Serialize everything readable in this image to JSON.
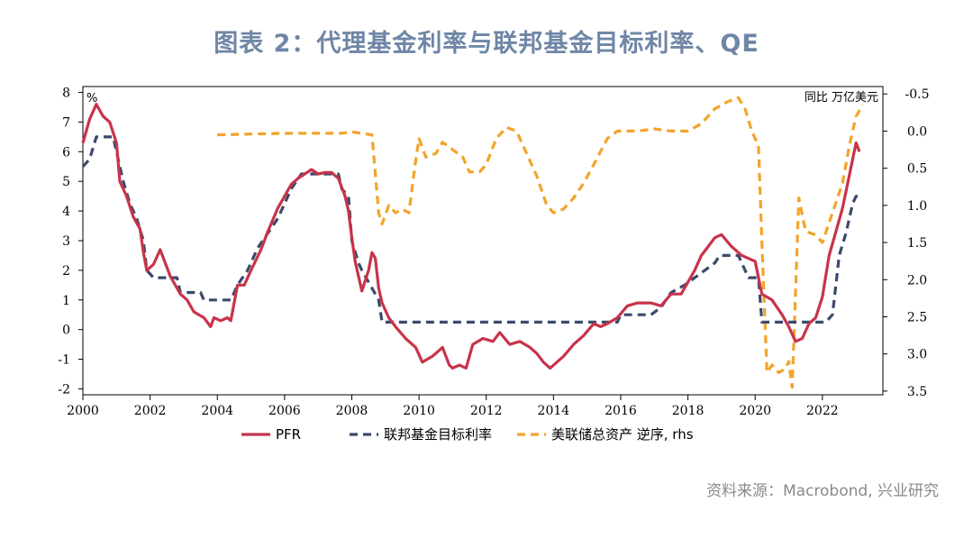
{
  "title": "图表 2：代理基金利率与联邦基金目标利率、QE",
  "source": "资料来源：Macrobond, 兴业研究",
  "chart_data": {
    "type": "line",
    "left_unit": "%",
    "right_unit": "同比 万亿美元",
    "x_ticks": [
      "2000",
      "2002",
      "2004",
      "2006",
      "2008",
      "2010",
      "2012",
      "2014",
      "2016",
      "2018",
      "2020",
      "2022"
    ],
    "y_left_ticks": [
      "8",
      "7",
      "6",
      "5",
      "4",
      "3",
      "2",
      "1",
      "0",
      "-1",
      "-2"
    ],
    "y_right_ticks": [
      "-0.5",
      "0.0",
      "0.5",
      "1.0",
      "1.5",
      "2.0",
      "2.5",
      "3.0",
      "3.5"
    ],
    "xlim": [
      2000,
      2023.8
    ],
    "ylim_left": [
      -2.2,
      8.2
    ],
    "ylim_right": [
      -0.6,
      3.55
    ],
    "right_axis_inverted": true,
    "legend": [
      "PFR",
      "联邦基金目标利率",
      "美联储总资产 逆序, rhs"
    ],
    "colors": {
      "pfr": "#c8334a",
      "target": "#3b4a6b",
      "qe": "#f2a42b"
    },
    "series": [
      {
        "name": "PFR",
        "axis": "left",
        "points": [
          [
            2000.0,
            6.3
          ],
          [
            2000.2,
            7.1
          ],
          [
            2000.4,
            7.6
          ],
          [
            2000.6,
            7.2
          ],
          [
            2000.8,
            7.0
          ],
          [
            2001.0,
            6.3
          ],
          [
            2001.1,
            5.0
          ],
          [
            2001.3,
            4.5
          ],
          [
            2001.5,
            3.8
          ],
          [
            2001.7,
            3.4
          ],
          [
            2001.8,
            2.6
          ],
          [
            2001.9,
            2.0
          ],
          [
            2002.1,
            2.2
          ],
          [
            2002.3,
            2.7
          ],
          [
            2002.6,
            1.8
          ],
          [
            2002.9,
            1.2
          ],
          [
            2003.1,
            1.0
          ],
          [
            2003.3,
            0.6
          ],
          [
            2003.6,
            0.4
          ],
          [
            2003.8,
            0.1
          ],
          [
            2003.9,
            0.4
          ],
          [
            2004.1,
            0.3
          ],
          [
            2004.3,
            0.4
          ],
          [
            2004.4,
            0.3
          ],
          [
            2004.6,
            1.5
          ],
          [
            2004.8,
            1.5
          ],
          [
            2005.0,
            2.0
          ],
          [
            2005.3,
            2.7
          ],
          [
            2005.5,
            3.3
          ],
          [
            2005.8,
            4.1
          ],
          [
            2006.0,
            4.5
          ],
          [
            2006.2,
            4.9
          ],
          [
            2006.4,
            5.1
          ],
          [
            2006.6,
            5.25
          ],
          [
            2006.8,
            5.4
          ],
          [
            2007.0,
            5.25
          ],
          [
            2007.2,
            5.3
          ],
          [
            2007.4,
            5.3
          ],
          [
            2007.6,
            5.1
          ],
          [
            2007.8,
            4.5
          ],
          [
            2007.9,
            4.0
          ],
          [
            2008.0,
            3.1
          ],
          [
            2008.1,
            2.3
          ],
          [
            2008.3,
            1.3
          ],
          [
            2008.5,
            2.0
          ],
          [
            2008.6,
            2.6
          ],
          [
            2008.7,
            2.4
          ],
          [
            2008.8,
            1.4
          ],
          [
            2008.9,
            0.9
          ],
          [
            2009.1,
            0.4
          ],
          [
            2009.3,
            0.1
          ],
          [
            2009.6,
            -0.3
          ],
          [
            2009.9,
            -0.6
          ],
          [
            2010.1,
            -1.1
          ],
          [
            2010.4,
            -0.9
          ],
          [
            2010.7,
            -0.6
          ],
          [
            2010.9,
            -1.2
          ],
          [
            2011.0,
            -1.3
          ],
          [
            2011.2,
            -1.2
          ],
          [
            2011.4,
            -1.3
          ],
          [
            2011.6,
            -0.5
          ],
          [
            2011.9,
            -0.3
          ],
          [
            2012.2,
            -0.4
          ],
          [
            2012.4,
            -0.1
          ],
          [
            2012.7,
            -0.5
          ],
          [
            2013.0,
            -0.4
          ],
          [
            2013.3,
            -0.6
          ],
          [
            2013.5,
            -0.8
          ],
          [
            2013.7,
            -1.1
          ],
          [
            2013.9,
            -1.3
          ],
          [
            2014.1,
            -1.1
          ],
          [
            2014.3,
            -0.9
          ],
          [
            2014.6,
            -0.5
          ],
          [
            2014.9,
            -0.2
          ],
          [
            2015.2,
            0.2
          ],
          [
            2015.4,
            0.1
          ],
          [
            2015.6,
            0.2
          ],
          [
            2015.9,
            0.4
          ],
          [
            2016.2,
            0.8
          ],
          [
            2016.5,
            0.9
          ],
          [
            2016.9,
            0.9
          ],
          [
            2017.2,
            0.8
          ],
          [
            2017.5,
            1.2
          ],
          [
            2017.8,
            1.2
          ],
          [
            2018.0,
            1.6
          ],
          [
            2018.2,
            2.0
          ],
          [
            2018.4,
            2.5
          ],
          [
            2018.6,
            2.8
          ],
          [
            2018.8,
            3.1
          ],
          [
            2019.0,
            3.2
          ],
          [
            2019.3,
            2.8
          ],
          [
            2019.6,
            2.5
          ],
          [
            2019.8,
            2.4
          ],
          [
            2020.0,
            2.3
          ],
          [
            2020.2,
            1.2
          ],
          [
            2020.5,
            1.0
          ],
          [
            2020.8,
            0.5
          ],
          [
            2021.0,
            0.1
          ],
          [
            2021.2,
            -0.4
          ],
          [
            2021.4,
            -0.3
          ],
          [
            2021.6,
            0.2
          ],
          [
            2021.8,
            0.4
          ],
          [
            2022.0,
            1.1
          ],
          [
            2022.2,
            2.5
          ],
          [
            2022.4,
            3.3
          ],
          [
            2022.6,
            4.1
          ],
          [
            2022.8,
            5.2
          ],
          [
            2023.0,
            6.3
          ],
          [
            2023.1,
            6.0
          ]
        ]
      },
      {
        "name": "联邦基金目标利率",
        "axis": "left",
        "points": [
          [
            2000.0,
            5.5
          ],
          [
            2000.2,
            5.75
          ],
          [
            2000.4,
            6.5
          ],
          [
            2000.7,
            6.5
          ],
          [
            2000.9,
            6.5
          ],
          [
            2001.0,
            6.0
          ],
          [
            2001.2,
            5.0
          ],
          [
            2001.4,
            4.25
          ],
          [
            2001.6,
            3.75
          ],
          [
            2001.8,
            3.0
          ],
          [
            2001.9,
            2.0
          ],
          [
            2002.1,
            1.75
          ],
          [
            2002.8,
            1.75
          ],
          [
            2002.9,
            1.25
          ],
          [
            2003.5,
            1.25
          ],
          [
            2003.6,
            1.0
          ],
          [
            2004.4,
            1.0
          ],
          [
            2004.6,
            1.5
          ],
          [
            2004.9,
            2.0
          ],
          [
            2005.2,
            2.75
          ],
          [
            2005.5,
            3.25
          ],
          [
            2005.8,
            3.75
          ],
          [
            2006.0,
            4.25
          ],
          [
            2006.2,
            4.75
          ],
          [
            2006.5,
            5.25
          ],
          [
            2007.6,
            5.25
          ],
          [
            2007.7,
            4.75
          ],
          [
            2007.9,
            4.5
          ],
          [
            2008.0,
            3.0
          ],
          [
            2008.2,
            2.25
          ],
          [
            2008.3,
            2.0
          ],
          [
            2008.8,
            1.0
          ],
          [
            2008.9,
            0.25
          ],
          [
            2015.9,
            0.25
          ],
          [
            2016.0,
            0.5
          ],
          [
            2016.9,
            0.5
          ],
          [
            2017.2,
            0.75
          ],
          [
            2017.5,
            1.25
          ],
          [
            2017.9,
            1.5
          ],
          [
            2018.2,
            1.75
          ],
          [
            2018.5,
            2.0
          ],
          [
            2018.8,
            2.25
          ],
          [
            2018.95,
            2.5
          ],
          [
            2019.5,
            2.5
          ],
          [
            2019.6,
            2.25
          ],
          [
            2019.8,
            1.75
          ],
          [
            2020.1,
            1.75
          ],
          [
            2020.2,
            0.25
          ],
          [
            2022.1,
            0.25
          ],
          [
            2022.3,
            0.5
          ],
          [
            2022.4,
            1.5
          ],
          [
            2022.5,
            2.5
          ],
          [
            2022.7,
            3.25
          ],
          [
            2022.8,
            3.75
          ],
          [
            2022.9,
            4.25
          ],
          [
            2023.0,
            4.5
          ],
          [
            2023.1,
            4.5
          ]
        ]
      },
      {
        "name": "美联储总资产 逆序, rhs",
        "axis": "right",
        "points": [
          [
            2004.0,
            0.05
          ],
          [
            2005.0,
            0.04
          ],
          [
            2006.0,
            0.03
          ],
          [
            2007.0,
            0.03
          ],
          [
            2007.7,
            0.03
          ],
          [
            2008.0,
            0.01
          ],
          [
            2008.3,
            0.03
          ],
          [
            2008.6,
            0.05
          ],
          [
            2008.8,
            1.1
          ],
          [
            2008.9,
            1.25
          ],
          [
            2009.1,
            1.0
          ],
          [
            2009.3,
            1.1
          ],
          [
            2009.5,
            1.05
          ],
          [
            2009.7,
            1.1
          ],
          [
            2009.9,
            0.4
          ],
          [
            2010.0,
            0.1
          ],
          [
            2010.2,
            0.35
          ],
          [
            2010.5,
            0.3
          ],
          [
            2010.7,
            0.15
          ],
          [
            2011.0,
            0.25
          ],
          [
            2011.3,
            0.35
          ],
          [
            2011.5,
            0.55
          ],
          [
            2011.8,
            0.55
          ],
          [
            2012.0,
            0.45
          ],
          [
            2012.3,
            0.1
          ],
          [
            2012.6,
            -0.05
          ],
          [
            2012.9,
            0.0
          ],
          [
            2013.2,
            0.3
          ],
          [
            2013.5,
            0.6
          ],
          [
            2013.8,
            1.0
          ],
          [
            2014.0,
            1.1
          ],
          [
            2014.3,
            1.05
          ],
          [
            2014.6,
            0.9
          ],
          [
            2014.9,
            0.7
          ],
          [
            2015.2,
            0.45
          ],
          [
            2015.6,
            0.1
          ],
          [
            2015.9,
            0.0
          ],
          [
            2016.5,
            0.0
          ],
          [
            2017.0,
            -0.03
          ],
          [
            2017.5,
            0.0
          ],
          [
            2018.0,
            0.0
          ],
          [
            2018.4,
            -0.1
          ],
          [
            2018.8,
            -0.3
          ],
          [
            2019.2,
            -0.4
          ],
          [
            2019.5,
            -0.45
          ],
          [
            2019.7,
            -0.3
          ],
          [
            2019.9,
            0.0
          ],
          [
            2020.1,
            0.2
          ],
          [
            2020.2,
            1.5
          ],
          [
            2020.35,
            3.25
          ],
          [
            2020.5,
            3.15
          ],
          [
            2020.7,
            3.25
          ],
          [
            2020.9,
            3.2
          ],
          [
            2021.0,
            3.1
          ],
          [
            2021.1,
            3.45
          ],
          [
            2021.3,
            0.9
          ],
          [
            2021.5,
            1.35
          ],
          [
            2021.8,
            1.4
          ],
          [
            2022.0,
            1.5
          ],
          [
            2022.3,
            1.1
          ],
          [
            2022.6,
            0.7
          ],
          [
            2022.8,
            0.2
          ],
          [
            2023.0,
            -0.2
          ],
          [
            2023.2,
            -0.35
          ]
        ]
      }
    ]
  }
}
